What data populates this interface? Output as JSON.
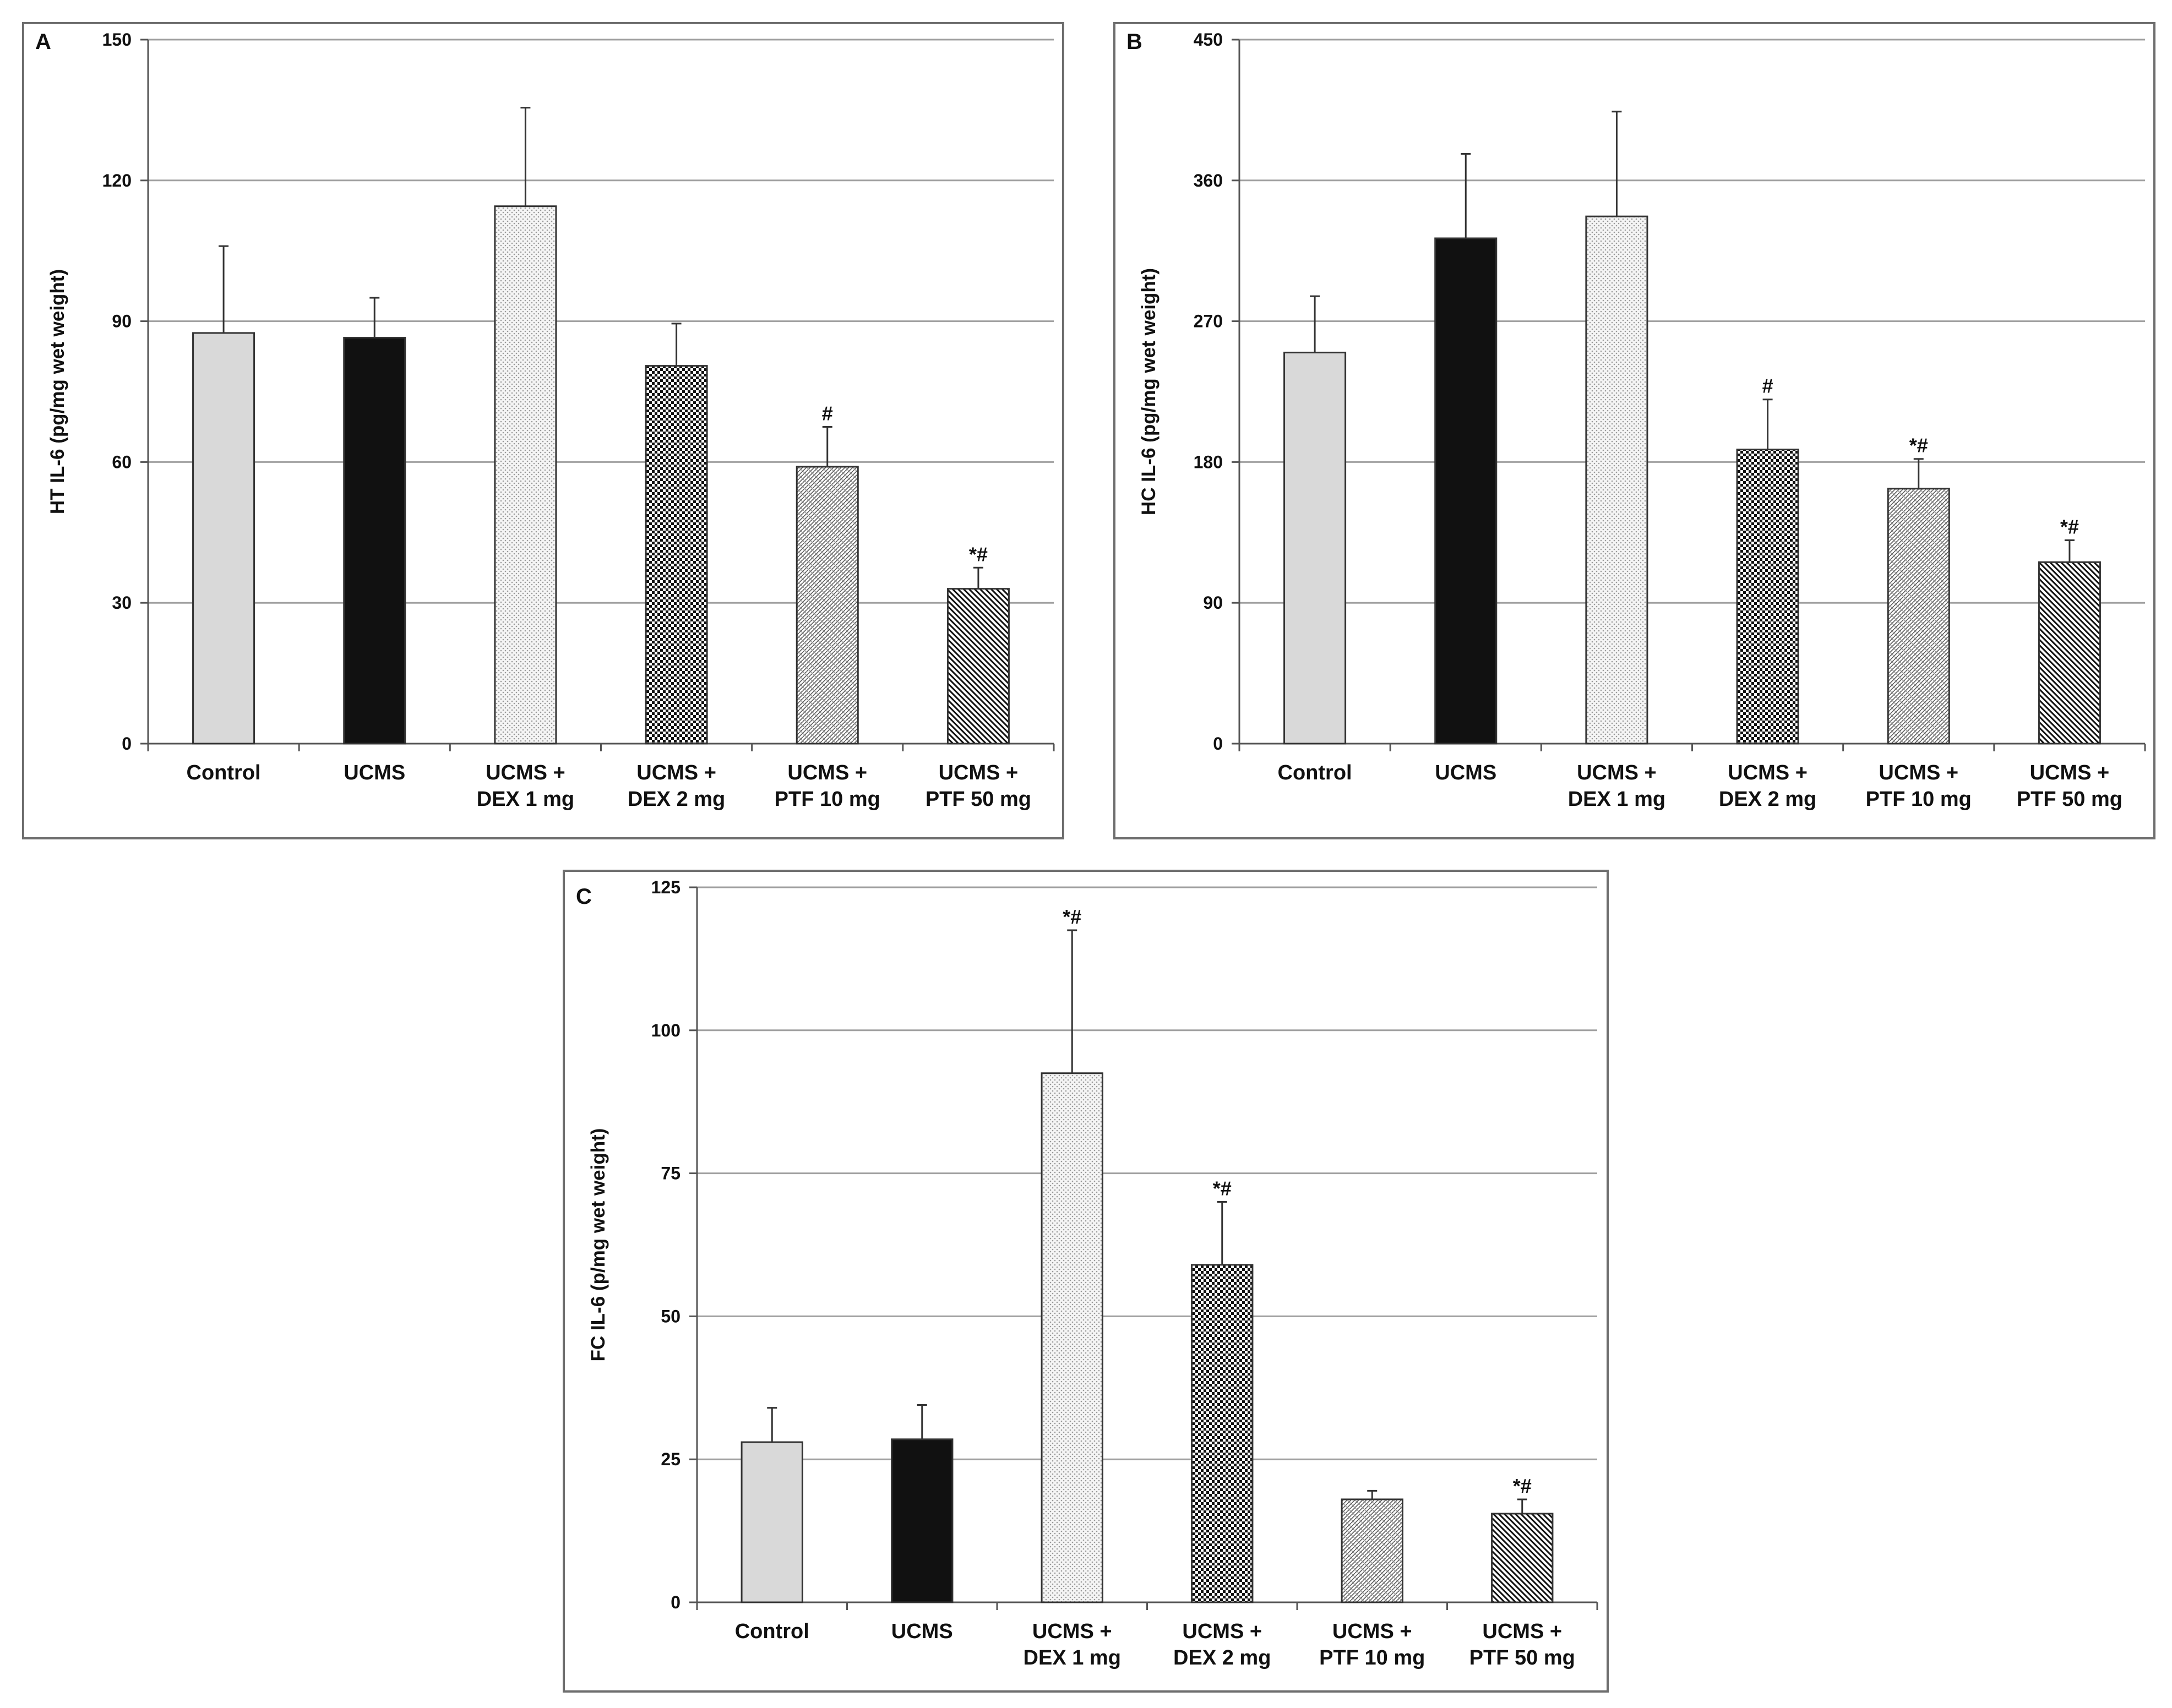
{
  "chart_data": [
    {
      "type": "bar",
      "panel_label": "A",
      "ylabel": "HT IL-6 (pg/mg wet weight)",
      "ylim": [
        0,
        150
      ],
      "yticks": [
        0,
        30,
        60,
        90,
        120,
        150
      ],
      "categories": [
        [
          "Control"
        ],
        [
          "UCMS"
        ],
        [
          "UCMS +",
          "DEX 1 mg"
        ],
        [
          "UCMS +",
          "DEX 2 mg"
        ],
        [
          "UCMS +",
          "PTF 10 mg"
        ],
        [
          "UCMS +",
          "PTF 50 mg"
        ]
      ],
      "values": [
        87.5,
        86.5,
        114.5,
        80.5,
        59,
        33
      ],
      "errors": [
        18.5,
        8.5,
        21,
        9,
        8.5,
        4.5
      ],
      "annotations": [
        "",
        "",
        "",
        "",
        "#",
        "*#"
      ]
    },
    {
      "type": "bar",
      "panel_label": "B",
      "ylabel": "HC IL-6 (pg/mg wet weight)",
      "ylim": [
        0,
        450
      ],
      "yticks": [
        0,
        90,
        180,
        270,
        360,
        450
      ],
      "categories": [
        [
          "Control"
        ],
        [
          "UCMS"
        ],
        [
          "UCMS +",
          "DEX 1 mg"
        ],
        [
          "UCMS +",
          "DEX 2 mg"
        ],
        [
          "UCMS +",
          "PTF 10 mg"
        ],
        [
          "UCMS +",
          "PTF 50 mg"
        ]
      ],
      "values": [
        250,
        323,
        337,
        188,
        163,
        116
      ],
      "errors": [
        36,
        54,
        67,
        32,
        19,
        14
      ],
      "annotations": [
        "",
        "",
        "",
        "#",
        "*#",
        "*#"
      ]
    },
    {
      "type": "bar",
      "panel_label": "C",
      "ylabel": "FC IL-6 (p/mg wet weight)",
      "ylim": [
        0,
        125
      ],
      "yticks": [
        0,
        25,
        50,
        75,
        100,
        125
      ],
      "categories": [
        [
          "Control"
        ],
        [
          "UCMS"
        ],
        [
          "UCMS +",
          "DEX 1 mg"
        ],
        [
          "UCMS +",
          "DEX 2 mg"
        ],
        [
          "UCMS +",
          "PTF 10 mg"
        ],
        [
          "UCMS +",
          "PTF 50 mg"
        ]
      ],
      "values": [
        28,
        28.5,
        92.5,
        59,
        18,
        15.5
      ],
      "errors": [
        6,
        6,
        25,
        11,
        1.5,
        2.5
      ],
      "annotations": [
        "",
        "",
        "*#",
        "*#",
        "",
        "*#"
      ]
    }
  ]
}
